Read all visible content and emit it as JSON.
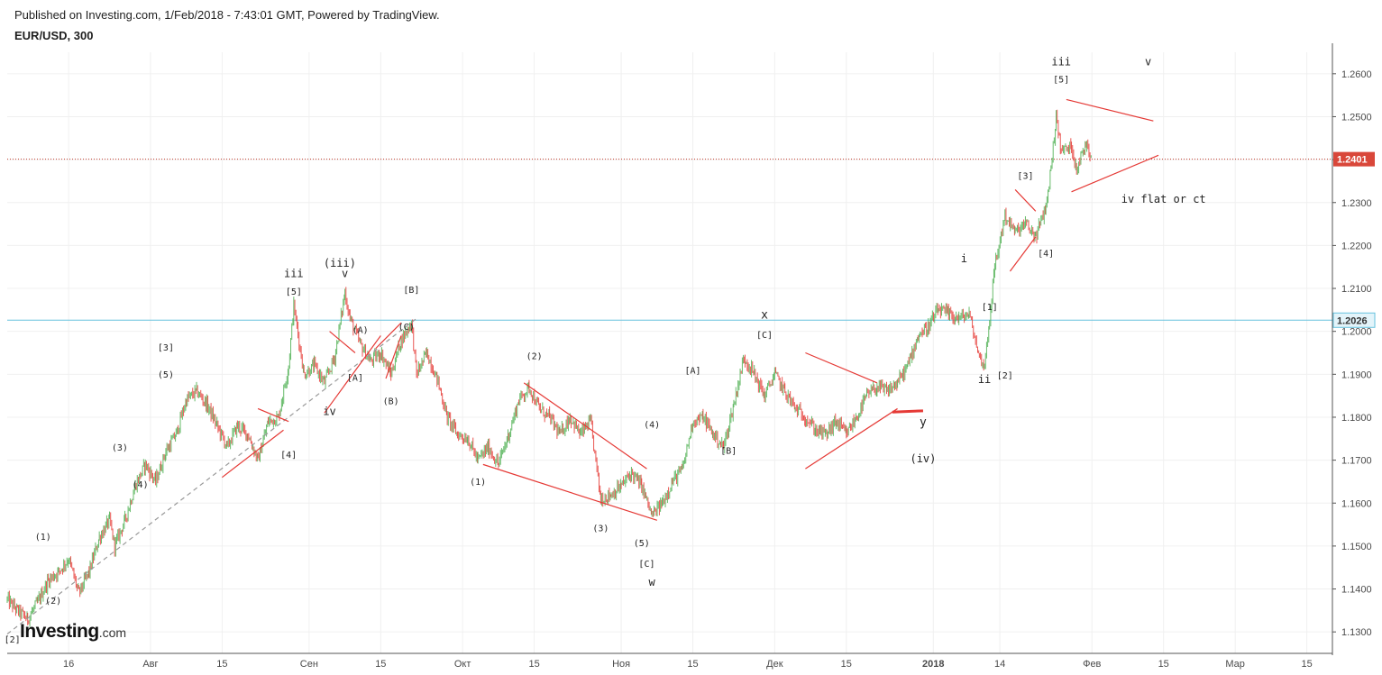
{
  "header": {
    "published": "Published on Investing.com, 1/Feb/2018 - 7:43:01 GMT, Powered by TradingView.",
    "symbol": "EUR/USD, 300"
  },
  "logo": {
    "main": "Investing",
    "suffix": ".com"
  },
  "colors": {
    "candle": "#8e8e8e",
    "up": "#4caf50",
    "down": "#e53935",
    "annotation": "#e53935",
    "grid": "#f0f0f0",
    "price_line": "#c0392b",
    "level_line": "#66c2de",
    "trend_dash": "#999999"
  },
  "chart_data": {
    "type": "line",
    "title": "EUR/USD, 300",
    "ylim": [
      1.125,
      1.265
    ],
    "yticks": [
      1.26,
      1.25,
      1.24,
      1.23,
      1.22,
      1.21,
      1.2,
      1.19,
      1.18,
      1.17,
      1.16,
      1.15,
      1.14,
      1.13
    ],
    "ytick_labels": [
      "1.2600",
      "1.2500",
      "1.2400",
      "1.2300",
      "1.2200",
      "1.2100",
      "1.2000",
      "1.1900",
      "1.1800",
      "1.1700",
      "1.1600",
      "1.1500",
      "1.1400",
      "1.1300"
    ],
    "xlim": [
      "2017-07-04",
      "2018-03-20"
    ],
    "xticks": [
      {
        "date": "2017-07-16",
        "label": "16",
        "bold": false
      },
      {
        "date": "2017-08-01",
        "label": "Авг",
        "bold": false
      },
      {
        "date": "2017-08-15",
        "label": "15",
        "bold": false
      },
      {
        "date": "2017-09-01",
        "label": "Сен",
        "bold": false
      },
      {
        "date": "2017-09-15",
        "label": "15",
        "bold": false
      },
      {
        "date": "2017-10-01",
        "label": "Окт",
        "bold": false
      },
      {
        "date": "2017-10-15",
        "label": "15",
        "bold": false
      },
      {
        "date": "2017-11-01",
        "label": "Ноя",
        "bold": false
      },
      {
        "date": "2017-11-15",
        "label": "15",
        "bold": false
      },
      {
        "date": "2017-12-01",
        "label": "Дек",
        "bold": false
      },
      {
        "date": "2017-12-15",
        "label": "15",
        "bold": false
      },
      {
        "date": "2018-01-01",
        "label": "2018",
        "bold": true
      },
      {
        "date": "2018-01-14",
        "label": "14",
        "bold": false
      },
      {
        "date": "2018-02-01",
        "label": "Фев",
        "bold": false
      },
      {
        "date": "2018-02-15",
        "label": "15",
        "bold": false
      },
      {
        "date": "2018-03-01",
        "label": "Мар",
        "bold": false
      },
      {
        "date": "2018-03-15",
        "label": "15",
        "bold": false
      }
    ],
    "last_price": {
      "value": 1.2401,
      "label": "1.2401"
    },
    "level": {
      "value": 1.2026,
      "label": "1.2026"
    },
    "series": [
      {
        "points": [
          [
            "2017-07-04",
            1.1375
          ],
          [
            "2017-07-06",
            1.135
          ],
          [
            "2017-07-08",
            1.133
          ],
          [
            "2017-07-10",
            1.137
          ],
          [
            "2017-07-12",
            1.142
          ],
          [
            "2017-07-14",
            1.144
          ],
          [
            "2017-07-16",
            1.147
          ],
          [
            "2017-07-18",
            1.139
          ],
          [
            "2017-07-20",
            1.144
          ],
          [
            "2017-07-22",
            1.152
          ],
          [
            "2017-07-24",
            1.156
          ],
          [
            "2017-07-25",
            1.15
          ],
          [
            "2017-07-27",
            1.156
          ],
          [
            "2017-07-29",
            1.164
          ],
          [
            "2017-07-31",
            1.169
          ],
          [
            "2017-08-02",
            1.165
          ],
          [
            "2017-08-04",
            1.172
          ],
          [
            "2017-08-06",
            1.176
          ],
          [
            "2017-08-08",
            1.184
          ],
          [
            "2017-08-10",
            1.186
          ],
          [
            "2017-08-12",
            1.183
          ],
          [
            "2017-08-14",
            1.178
          ],
          [
            "2017-08-16",
            1.173
          ],
          [
            "2017-08-18",
            1.178
          ],
          [
            "2017-08-20",
            1.176
          ],
          [
            "2017-08-22",
            1.17
          ],
          [
            "2017-08-24",
            1.179
          ],
          [
            "2017-08-26",
            1.18
          ],
          [
            "2017-08-28",
            1.192
          ],
          [
            "2017-08-29",
            1.206
          ],
          [
            "2017-08-31",
            1.19
          ],
          [
            "2017-09-02",
            1.192
          ],
          [
            "2017-09-04",
            1.188
          ],
          [
            "2017-09-06",
            1.194
          ],
          [
            "2017-09-08",
            1.209
          ],
          [
            "2017-09-09",
            1.203
          ],
          [
            "2017-09-11",
            1.197
          ],
          [
            "2017-09-13",
            1.193
          ],
          [
            "2017-09-15",
            1.195
          ],
          [
            "2017-09-17",
            1.19
          ],
          [
            "2017-09-19",
            1.198
          ],
          [
            "2017-09-21",
            1.202
          ],
          [
            "2017-09-22",
            1.19
          ],
          [
            "2017-09-24",
            1.195
          ],
          [
            "2017-09-26",
            1.189
          ],
          [
            "2017-09-28",
            1.18
          ],
          [
            "2017-09-30",
            1.176
          ],
          [
            "2017-10-02",
            1.175
          ],
          [
            "2017-10-04",
            1.17
          ],
          [
            "2017-10-06",
            1.173
          ],
          [
            "2017-10-08",
            1.169
          ],
          [
            "2017-10-10",
            1.176
          ],
          [
            "2017-10-12",
            1.184
          ],
          [
            "2017-10-14",
            1.187
          ],
          [
            "2017-10-16",
            1.182
          ],
          [
            "2017-10-18",
            1.18
          ],
          [
            "2017-10-20",
            1.176
          ],
          [
            "2017-10-22",
            1.18
          ],
          [
            "2017-10-24",
            1.176
          ],
          [
            "2017-10-26",
            1.179
          ],
          [
            "2017-10-28",
            1.161
          ],
          [
            "2017-10-30",
            1.162
          ],
          [
            "2017-11-01",
            1.164
          ],
          [
            "2017-11-03",
            1.167
          ],
          [
            "2017-11-05",
            1.164
          ],
          [
            "2017-11-07",
            1.157
          ],
          [
            "2017-11-09",
            1.16
          ],
          [
            "2017-11-11",
            1.165
          ],
          [
            "2017-11-13",
            1.168
          ],
          [
            "2017-11-15",
            1.179
          ],
          [
            "2017-11-17",
            1.18
          ],
          [
            "2017-11-19",
            1.176
          ],
          [
            "2017-11-21",
            1.173
          ],
          [
            "2017-11-23",
            1.183
          ],
          [
            "2017-11-25",
            1.194
          ],
          [
            "2017-11-27",
            1.19
          ],
          [
            "2017-11-29",
            1.185
          ],
          [
            "2017-12-01",
            1.19
          ],
          [
            "2017-12-03",
            1.186
          ],
          [
            "2017-12-05",
            1.182
          ],
          [
            "2017-12-07",
            1.18
          ],
          [
            "2017-12-09",
            1.177
          ],
          [
            "2017-12-11",
            1.176
          ],
          [
            "2017-12-13",
            1.179
          ],
          [
            "2017-12-15",
            1.176
          ],
          [
            "2017-12-17",
            1.18
          ],
          [
            "2017-12-19",
            1.185
          ],
          [
            "2017-12-21",
            1.187
          ],
          [
            "2017-12-23",
            1.186
          ],
          [
            "2017-12-25",
            1.188
          ],
          [
            "2017-12-27",
            1.192
          ],
          [
            "2017-12-29",
            1.199
          ],
          [
            "2017-12-31",
            1.201
          ],
          [
            "2018-01-02",
            1.205
          ],
          [
            "2018-01-04",
            1.204
          ],
          [
            "2018-01-06",
            1.203
          ],
          [
            "2018-01-08",
            1.204
          ],
          [
            "2018-01-10",
            1.194
          ],
          [
            "2018-01-11",
            1.192
          ],
          [
            "2018-01-12",
            1.203
          ],
          [
            "2018-01-13",
            1.215
          ],
          [
            "2018-01-15",
            1.227
          ],
          [
            "2018-01-17",
            1.223
          ],
          [
            "2018-01-19",
            1.225
          ],
          [
            "2018-01-21",
            1.222
          ],
          [
            "2018-01-23",
            1.229
          ],
          [
            "2018-01-24",
            1.238
          ],
          [
            "2018-01-25",
            1.25
          ],
          [
            "2018-01-26",
            1.242
          ],
          [
            "2018-01-28",
            1.243
          ],
          [
            "2018-01-29",
            1.238
          ],
          [
            "2018-01-31",
            1.244
          ],
          [
            "2018-02-01",
            1.2401
          ]
        ]
      }
    ],
    "trend_lines": [
      {
        "from": [
          "2017-07-04",
          1.1295
        ],
        "to": [
          "2017-09-22",
          1.203
        ],
        "style": "dashed"
      },
      {
        "from": [
          "2017-08-22",
          1.182
        ],
        "to": [
          "2017-08-28",
          1.179
        ]
      },
      {
        "from": [
          "2017-08-15",
          1.166
        ],
        "to": [
          "2017-08-27",
          1.177
        ]
      },
      {
        "from": [
          "2017-09-05",
          1.2
        ],
        "to": [
          "2017-09-10",
          1.195
        ]
      },
      {
        "from": [
          "2017-09-04",
          1.181
        ],
        "to": [
          "2017-09-15",
          1.199
        ]
      },
      {
        "from": [
          "2017-09-14",
          1.196
        ],
        "to": [
          "2017-09-19",
          1.202
        ]
      },
      {
        "from": [
          "2017-09-16",
          1.189
        ],
        "to": [
          "2017-09-19",
          1.199
        ]
      },
      {
        "from": [
          "2017-10-05",
          1.169
        ],
        "to": [
          "2017-11-08",
          1.156
        ]
      },
      {
        "from": [
          "2017-10-13",
          1.188
        ],
        "to": [
          "2017-11-06",
          1.168
        ]
      },
      {
        "from": [
          "2017-12-07",
          1.168
        ],
        "to": [
          "2017-12-25",
          1.182
        ]
      },
      {
        "from": [
          "2017-12-07",
          1.195
        ],
        "to": [
          "2017-12-21",
          1.188
        ]
      },
      {
        "from": [
          "2017-12-24",
          1.1812
        ],
        "to": [
          "2017-12-30",
          1.1815
        ],
        "style": "thick"
      },
      {
        "from": [
          "2018-01-16",
          1.214
        ],
        "to": [
          "2018-01-21",
          1.222
        ]
      },
      {
        "from": [
          "2018-01-17",
          1.233
        ],
        "to": [
          "2018-01-21",
          1.228
        ]
      },
      {
        "from": [
          "2018-01-27",
          1.254
        ],
        "to": [
          "2018-02-13",
          1.249
        ]
      },
      {
        "from": [
          "2018-01-28",
          1.2325
        ],
        "to": [
          "2018-02-14",
          1.241
        ]
      }
    ],
    "annotations": [
      {
        "text": "[2]",
        "x": "2017-07-05",
        "y": 1.1275,
        "size": 10
      },
      {
        "text": "(1)",
        "x": "2017-07-11",
        "y": 1.1514,
        "size": 10
      },
      {
        "text": "(2)",
        "x": "2017-07-13",
        "y": 1.1365,
        "size": 10
      },
      {
        "text": "(3)",
        "x": "2017-07-26",
        "y": 1.1722,
        "size": 10
      },
      {
        "text": "(4)",
        "x": "2017-07-30",
        "y": 1.1636,
        "size": 10
      },
      {
        "text": "[3]",
        "x": "2017-08-04",
        "y": 1.1955,
        "size": 10
      },
      {
        "text": "(5)",
        "x": "2017-08-04",
        "y": 1.1892,
        "size": 10
      },
      {
        "text": "[4]",
        "x": "2017-08-28",
        "y": 1.1705,
        "size": 10
      },
      {
        "text": "iii",
        "x": "2017-08-29",
        "y": 1.2126,
        "size": 12
      },
      {
        "text": "[5]",
        "x": "2017-08-29",
        "y": 1.2085,
        "size": 10
      },
      {
        "text": "iv",
        "x": "2017-09-05",
        "y": 1.1805,
        "size": 12
      },
      {
        "text": "(iii)",
        "x": "2017-09-07",
        "y": 1.215,
        "size": 12
      },
      {
        "text": "v",
        "x": "2017-09-08",
        "y": 1.2126,
        "size": 12
      },
      {
        "text": "(A)",
        "x": "2017-09-11",
        "y": 1.1996,
        "size": 10
      },
      {
        "text": "[A]",
        "x": "2017-09-10",
        "y": 1.1885,
        "size": 10
      },
      {
        "text": "(C)",
        "x": "2017-09-20",
        "y": 1.2003,
        "size": 10
      },
      {
        "text": "(B)",
        "x": "2017-09-17",
        "y": 1.183,
        "size": 10
      },
      {
        "text": "[B]",
        "x": "2017-09-21",
        "y": 1.209,
        "size": 10
      },
      {
        "text": "(1)",
        "x": "2017-10-04",
        "y": 1.1643,
        "size": 10
      },
      {
        "text": "(2)",
        "x": "2017-10-15",
        "y": 1.1935,
        "size": 10
      },
      {
        "text": "(4)",
        "x": "2017-11-07",
        "y": 1.1776,
        "size": 10
      },
      {
        "text": "(3)",
        "x": "2017-10-28",
        "y": 1.1534,
        "size": 10
      },
      {
        "text": "(5)",
        "x": "2017-11-05",
        "y": 1.15,
        "size": 10
      },
      {
        "text": "[C]",
        "x": "2017-11-06",
        "y": 1.1452,
        "size": 10
      },
      {
        "text": "w",
        "x": "2017-11-07",
        "y": 1.1407,
        "size": 12
      },
      {
        "text": "[A]",
        "x": "2017-11-15",
        "y": 1.1902,
        "size": 10
      },
      {
        "text": "[B]",
        "x": "2017-11-22",
        "y": 1.1715,
        "size": 10
      },
      {
        "text": "x",
        "x": "2017-11-29",
        "y": 1.203,
        "size": 13
      },
      {
        "text": "[C]",
        "x": "2017-11-29",
        "y": 1.1985,
        "size": 10
      },
      {
        "text": "y",
        "x": "2017-12-30",
        "y": 1.178,
        "size": 13
      },
      {
        "text": "(iv)",
        "x": "2017-12-30",
        "y": 1.1695,
        "size": 12
      },
      {
        "text": "i",
        "x": "2018-01-07",
        "y": 1.2161,
        "size": 12
      },
      {
        "text": "[1]",
        "x": "2018-01-12",
        "y": 1.205,
        "size": 10
      },
      {
        "text": "ii",
        "x": "2018-01-11",
        "y": 1.188,
        "size": 12
      },
      {
        "text": "[2]",
        "x": "2018-01-15",
        "y": 1.189,
        "size": 10
      },
      {
        "text": "[3]",
        "x": "2018-01-19",
        "y": 1.2355,
        "size": 10
      },
      {
        "text": "[4]",
        "x": "2018-01-23",
        "y": 1.2175,
        "size": 10
      },
      {
        "text": "iii",
        "x": "2018-01-26",
        "y": 1.262,
        "size": 12
      },
      {
        "text": "[5]",
        "x": "2018-01-26",
        "y": 1.258,
        "size": 10
      },
      {
        "text": "v",
        "x": "2018-02-12",
        "y": 1.262,
        "size": 12
      },
      {
        "text": "iv flat or ct",
        "x": "2018-02-15",
        "y": 1.23,
        "size": 12
      }
    ]
  }
}
